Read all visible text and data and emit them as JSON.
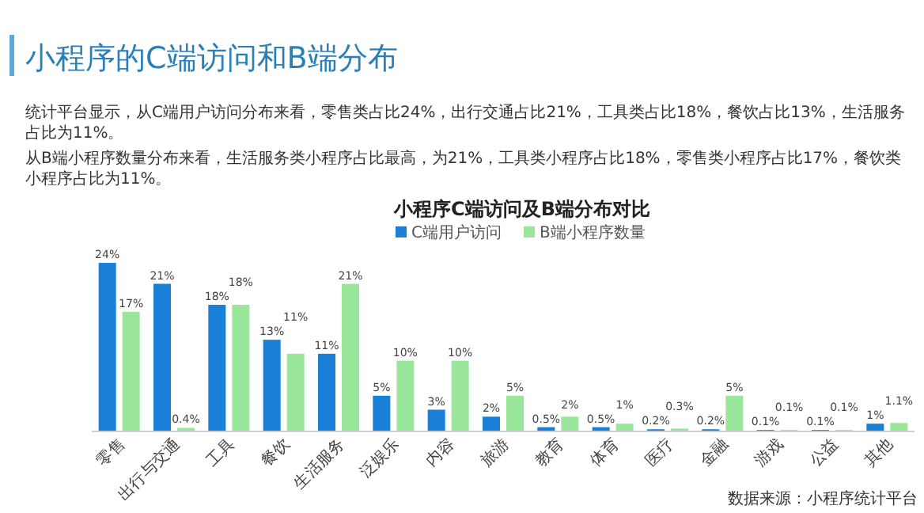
{
  "chart_data": {
    "type": "bar",
    "title": "小程序的C端访问和B端分布",
    "subtitle": "小程序C端访问及B端分布对比",
    "annotations": [
      "统计平台显示，从C端用户访问分布来看，零售类占比24%，出行交通占比21%，工具类占比18%，餐饮占比13%，生活服务占比为11%。",
      "从B端小程序数量分布来看，生活服务类小程序占比最高，为21%，工具类小程序占比18%，零售类小程序占比17%，餐饮类小程序占比为11%。",
      "数据来源：小程序统计平台"
    ],
    "categories": [
      "零售",
      "出行与交通",
      "工具",
      "餐饮",
      "生活服务",
      "泛娱乐",
      "内容",
      "旅游",
      "教育",
      "体育",
      "医疗",
      "金融",
      "游戏",
      "公益",
      "其他"
    ],
    "series": [
      {
        "name": "C端用户访问",
        "color": "#1a7fd6",
        "values": [
          24,
          21,
          18,
          13,
          11,
          5,
          3,
          2,
          0.5,
          0.5,
          0.2,
          0.2,
          0.1,
          0.1,
          1
        ],
        "value_labels": [
          "24%",
          "21%",
          "18%",
          "13%",
          "11%",
          "5%",
          "3%",
          "2%",
          "0.5%",
          "0.5%",
          "0.2%",
          "0.2%",
          "0.1%",
          "0.1%",
          "1%"
        ]
      },
      {
        "name": "B端小程序数量",
        "color": "#9ae69a",
        "values": [
          17,
          0.4,
          18,
          11,
          21,
          10,
          10,
          5,
          2,
          1,
          0.3,
          5,
          0.1,
          0.1,
          1.1
        ],
        "value_labels": [
          "17%",
          "0.4%",
          "18%",
          "11%",
          "21%",
          "10%",
          "10%",
          "5%",
          "2%",
          "1%",
          "0.3%",
          "5%",
          "0.1%",
          "0.1%",
          "1.1%"
        ]
      }
    ],
    "legend": "top"
  }
}
